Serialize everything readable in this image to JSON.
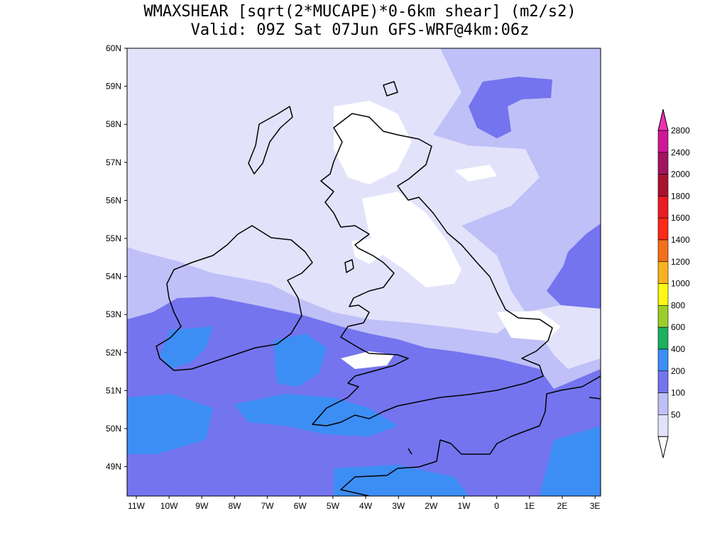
{
  "header": {
    "title_line_1": "WMAXSHEAR [sqrt(2*MUCAPE)*0-6km shear] (m2/s2)",
    "title_line_2": "Valid: 09Z Sat 07Jun GFS-WRF@4km:06z"
  },
  "map": {
    "lat_labels": [
      "60N",
      "59N",
      "58N",
      "57N",
      "56N",
      "55N",
      "54N",
      "53N",
      "52N",
      "51N",
      "50N",
      "49N"
    ],
    "lon_labels": [
      "11W",
      "10W",
      "9W",
      "8W",
      "7W",
      "6W",
      "5W",
      "4W",
      "3W",
      "2W",
      "1W",
      "0",
      "1E",
      "2E",
      "3E"
    ],
    "colors": {
      "level_50_100": "#e2e2fb",
      "level_100_200": "#bfc0f7",
      "level_200_400": "#7474ef",
      "level_400_600": "#3c8ef4",
      "below_50": "#ffffff",
      "coast": "#000000"
    }
  },
  "colorbar": {
    "labels": [
      "2800",
      "2400",
      "2000",
      "1800",
      "1600",
      "1400",
      "1200",
      "1000",
      "800",
      "600",
      "400",
      "200",
      "100",
      "50"
    ],
    "colors": [
      "#ce1797",
      "#a2145f",
      "#a8132e",
      "#ea1c24",
      "#ff2a18",
      "#f26f1c",
      "#f8b41e",
      "#fff714",
      "#9bce2a",
      "#1bb15e",
      "#3c8ef4",
      "#7474ef",
      "#bfc0f7",
      "#e2e2fb"
    ],
    "top_arrow_color": "#ee2fb4",
    "bottom_arrow_color": "#ffffff"
  }
}
